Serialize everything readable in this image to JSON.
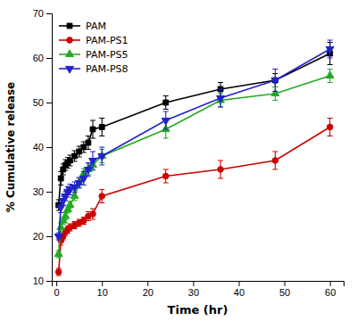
{
  "chart_data": {
    "type": "line",
    "xlabel": "Time (hr)",
    "ylabel": "% Cumulative release",
    "x": [
      0.5,
      1,
      1.5,
      2,
      2.5,
      3,
      4,
      5,
      6,
      7,
      8,
      10,
      24,
      36,
      48,
      60
    ],
    "series": [
      {
        "name": "PAM",
        "color": "#000000",
        "marker": "square",
        "values": [
          27,
          33,
          35,
          36,
          36.5,
          37,
          38,
          39,
          40,
          41,
          44,
          44.5,
          50,
          53,
          55,
          61
        ],
        "yerr": [
          1.2,
          1.5,
          1.2,
          1.2,
          1.2,
          1.2,
          1.2,
          1.2,
          1.2,
          1.5,
          2.0,
          2.0,
          1.5,
          1.5,
          1.5,
          2.5
        ]
      },
      {
        "name": "PAM-PS1",
        "color": "#cc0000",
        "marker": "circle",
        "values": [
          12,
          19,
          20,
          21,
          21.5,
          22,
          22.5,
          23,
          23.5,
          24.5,
          25,
          29,
          33.5,
          35,
          37,
          44.5
        ],
        "yerr": [
          0.8,
          1.0,
          0.8,
          0.8,
          0.8,
          0.8,
          0.8,
          0.8,
          0.8,
          1.0,
          1.2,
          1.5,
          1.5,
          2.0,
          2.0,
          2.0
        ]
      },
      {
        "name": "PAM-PS5",
        "color": "#22aa22",
        "marker": "triangle-up",
        "values": [
          16,
          22,
          23.5,
          24.5,
          26,
          27,
          29,
          32,
          34,
          35,
          36,
          38,
          44,
          50.5,
          52,
          56
        ],
        "yerr": [
          0.8,
          1.0,
          0.8,
          0.8,
          0.8,
          0.8,
          1.0,
          1.0,
          1.2,
          1.2,
          1.2,
          1.5,
          2.0,
          1.5,
          1.5,
          1.5
        ]
      },
      {
        "name": "PAM-PS8",
        "color": "#2222cc",
        "marker": "triangle-down",
        "values": [
          20,
          26.5,
          28,
          29,
          30,
          30.5,
          31,
          32,
          33,
          35,
          37,
          38,
          46,
          51,
          55,
          62
        ],
        "yerr": [
          0.8,
          1.2,
          1.0,
          1.0,
          1.2,
          1.2,
          1.2,
          1.2,
          1.5,
          1.5,
          2.0,
          2.0,
          2.0,
          2.0,
          2.5,
          2.0
        ]
      }
    ],
    "xlim": [
      -1,
      63
    ],
    "ylim": [
      10,
      70
    ],
    "xticks": [
      0,
      10,
      20,
      30,
      40,
      50,
      60
    ],
    "yticks": [
      10,
      20,
      30,
      40,
      50,
      60,
      70
    ],
    "grid": false,
    "legend": "upper left"
  }
}
